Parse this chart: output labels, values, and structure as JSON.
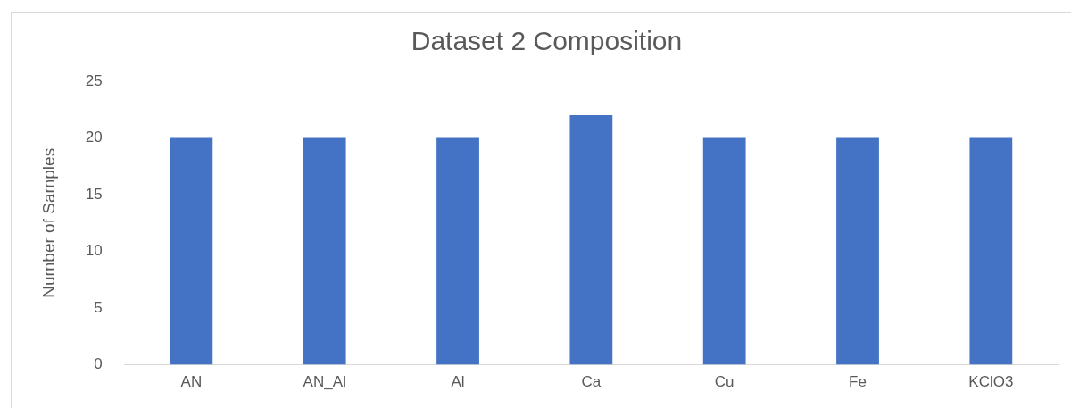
{
  "chart_data": {
    "type": "bar",
    "title": "Dataset 2 Composition",
    "ylabel": "Number of Samples",
    "categories": [
      "AN",
      "AN_Al",
      "Al",
      "Ca",
      "Cu",
      "Fe",
      "KClO3"
    ],
    "values": [
      20,
      20,
      20,
      22,
      20,
      20,
      20
    ],
    "color": "#4472c4",
    "ylim": [
      0,
      25
    ],
    "yticks": [
      0,
      5,
      10,
      15,
      20,
      25
    ],
    "grid": false,
    "legend": false
  }
}
